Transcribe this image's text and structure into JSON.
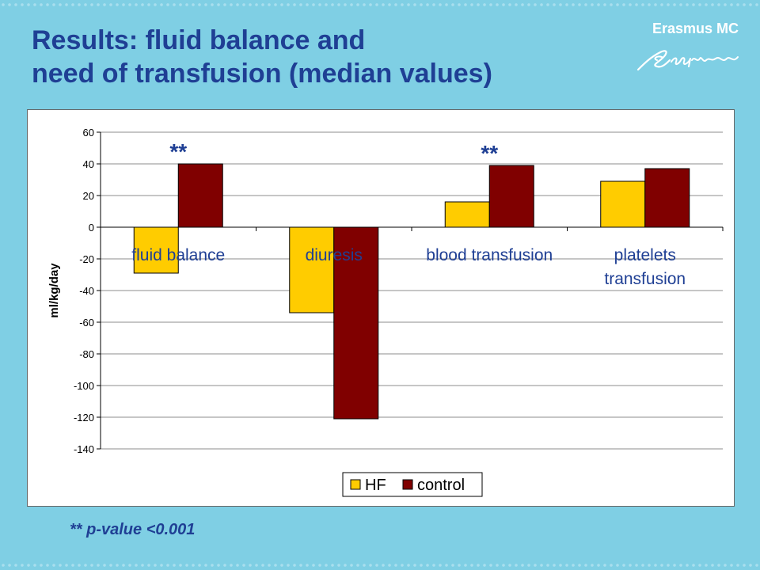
{
  "slide": {
    "title_line1": "Results: fluid balance and",
    "title_line2": "need of transfusion (median values)",
    "logo_text": "Erasmus MC",
    "footnote": "** p-value <0.001"
  },
  "colors": {
    "background": "#7fcfe4",
    "title": "#1f3f94",
    "hf": "#ffcc00",
    "control": "#800000",
    "significance": "#1f3f94"
  },
  "chart_data": {
    "type": "bar",
    "title": "",
    "xlabel": "",
    "ylabel": "ml/kg/day",
    "ylim": [
      -140,
      60
    ],
    "yticks": [
      60,
      40,
      20,
      0,
      -20,
      -40,
      -60,
      -80,
      -100,
      -120,
      -140
    ],
    "categories": [
      [
        "fluid balance"
      ],
      [
        "diuresis"
      ],
      [
        "blood transfusion"
      ],
      [
        "platelets",
        "transfusion"
      ]
    ],
    "series": [
      {
        "name": "HF",
        "values": [
          -29,
          -54,
          16,
          29
        ]
      },
      {
        "name": "control",
        "values": [
          40,
          -121,
          39,
          37
        ]
      }
    ],
    "annotations": [
      {
        "text": "**",
        "category": 0
      },
      {
        "text": "**",
        "category": 2
      }
    ],
    "legend_position": "bottom-center",
    "grid": "horizontal"
  }
}
